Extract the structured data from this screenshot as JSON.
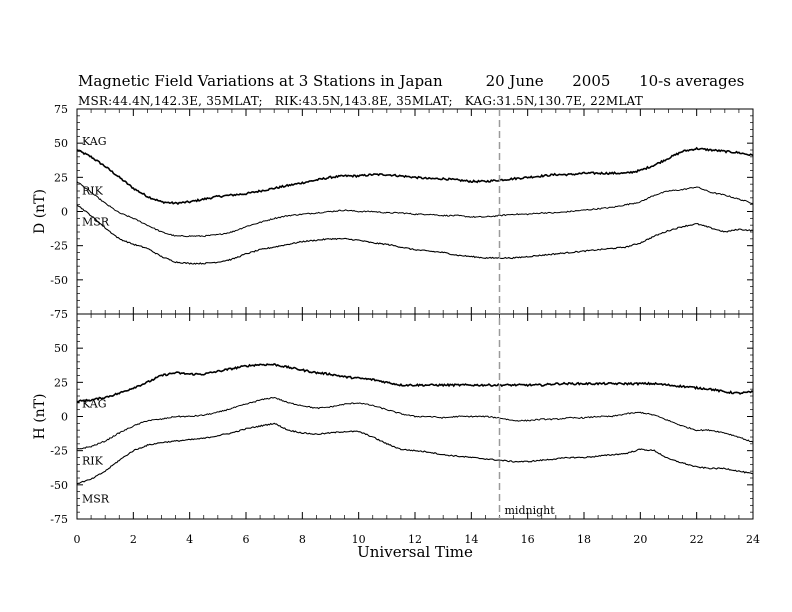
{
  "chart_data": {
    "type": "line",
    "title": "Magnetic Field Variations at 3 Stations in Japan",
    "date": "20 June",
    "year": "2005",
    "averaging": "10-s averages",
    "subtitle": "MSR:44.4N,142.3E, 35MLAT;   RIK:43.5N,143.8E, 35MLAT;   KAG:31.5N,130.7E, 22MLAT",
    "xlabel": "Universal Time",
    "xlim": [
      0,
      24
    ],
    "xticks": [
      "0",
      "2",
      "4",
      "6",
      "8",
      "10",
      "12",
      "14",
      "16",
      "18",
      "20",
      "22",
      "24"
    ],
    "grid": false,
    "annotation": {
      "text": "midnight",
      "x": 15,
      "style": "dashed-vertical-line"
    },
    "panels": [
      {
        "ylabel": "D (nT)",
        "ylim": [
          -75,
          75
        ],
        "yticks": [
          "75",
          "50",
          "25",
          "0",
          "-25",
          "-50",
          "-75"
        ],
        "series": [
          {
            "name": "KAG",
            "x": [
              0,
              0.5,
              1,
              1.5,
              2,
              2.5,
              3,
              3.5,
              4,
              4.5,
              5,
              5.5,
              6,
              6.5,
              7,
              7.5,
              8,
              8.5,
              9,
              9.5,
              10,
              10.5,
              11,
              11.5,
              12,
              12.5,
              13,
              13.5,
              14,
              14.5,
              15,
              15.5,
              16,
              16.5,
              17,
              17.5,
              18,
              18.5,
              19,
              19.5,
              20,
              20.5,
              21,
              21.5,
              22,
              22.5,
              23,
              23.5,
              24
            ],
            "values": [
              45,
              40,
              33,
              25,
              17,
              11,
              7,
              6,
              7,
              9,
              11,
              12,
              13,
              15,
              17,
              19,
              21,
              23,
              25,
              26,
              26,
              27,
              27,
              26,
              25,
              24,
              24,
              23,
              22,
              22,
              23,
              24,
              25,
              26,
              27,
              27,
              28,
              28,
              28,
              28,
              30,
              34,
              39,
              44,
              46,
              45,
              44,
              43,
              41
            ]
          },
          {
            "name": "RIK",
            "x": [
              0,
              0.5,
              1,
              1.5,
              2,
              2.5,
              3,
              3.5,
              4,
              4.5,
              5,
              5.5,
              6,
              6.5,
              7,
              7.5,
              8,
              8.5,
              9,
              9.5,
              10,
              10.5,
              11,
              11.5,
              12,
              12.5,
              13,
              13.5,
              14,
              14.5,
              15,
              15.5,
              16,
              16.5,
              17,
              17.5,
              18,
              18.5,
              19,
              19.5,
              20,
              20.5,
              21,
              21.5,
              22,
              22.5,
              23,
              23.5,
              24
            ],
            "values": [
              22,
              14,
              6,
              -1,
              -5,
              -10,
              -15,
              -18,
              -18,
              -18,
              -17,
              -15,
              -11,
              -8,
              -5,
              -3,
              -2,
              -1,
              0,
              1,
              0,
              0,
              -1,
              -1,
              -2,
              -2,
              -3,
              -3,
              -4,
              -4,
              -3,
              -2,
              -2,
              -1,
              -1,
              0,
              1,
              2,
              3,
              5,
              7,
              12,
              15,
              16,
              18,
              14,
              12,
              9,
              6
            ]
          },
          {
            "name": "MSR",
            "x": [
              0,
              0.5,
              1,
              1.5,
              2,
              2.5,
              3,
              3.5,
              4,
              4.5,
              5,
              5.5,
              6,
              6.5,
              7,
              7.5,
              8,
              8.5,
              9,
              9.5,
              10,
              10.5,
              11,
              11.5,
              12,
              12.5,
              13,
              13.5,
              14,
              14.5,
              15,
              15.5,
              16,
              16.5,
              17,
              17.5,
              18,
              18.5,
              19,
              19.5,
              20,
              20.5,
              21,
              21.5,
              22,
              22.5,
              23,
              23.5,
              24
            ],
            "values": [
              5,
              -3,
              -12,
              -20,
              -24,
              -27,
              -33,
              -37,
              -38,
              -38,
              -37,
              -35,
              -31,
              -28,
              -26,
              -24,
              -22,
              -21,
              -20,
              -20,
              -21,
              -23,
              -24,
              -26,
              -28,
              -29,
              -30,
              -32,
              -33,
              -34,
              -34,
              -34,
              -33,
              -32,
              -31,
              -30,
              -29,
              -28,
              -27,
              -26,
              -23,
              -18,
              -14,
              -11,
              -9,
              -12,
              -15,
              -13,
              -14
            ]
          }
        ]
      },
      {
        "ylabel": "H (nT)",
        "ylim": [
          -75,
          75
        ],
        "yticks": [
          "75",
          "50",
          "25",
          "0",
          "-25",
          "-50",
          "-75"
        ],
        "series": [
          {
            "name": "KAG",
            "x": [
              0,
              0.5,
              1,
              1.5,
              2,
              2.5,
              3,
              3.5,
              4,
              4.5,
              5,
              5.5,
              6,
              6.5,
              7,
              7.5,
              8,
              8.5,
              9,
              9.5,
              10,
              10.5,
              11,
              11.5,
              12,
              12.5,
              13,
              13.5,
              14,
              14.5,
              15,
              15.5,
              16,
              16.5,
              17,
              17.5,
              18,
              18.5,
              19,
              19.5,
              20,
              20.5,
              21,
              21.5,
              22,
              22.5,
              23,
              23.5,
              24
            ],
            "values": [
              11,
              12,
              14,
              17,
              21,
              25,
              30,
              32,
              31,
              31,
              33,
              35,
              37,
              38,
              38,
              36,
              34,
              32,
              31,
              29,
              28,
              27,
              25,
              23,
              23,
              23,
              23,
              23,
              23,
              23,
              23,
              23,
              23,
              23,
              24,
              24,
              24,
              24,
              24,
              24,
              24,
              24,
              23,
              22,
              21,
              20,
              18,
              17,
              18
            ]
          },
          {
            "name": "RIK",
            "x": [
              0,
              0.5,
              1,
              1.5,
              2,
              2.5,
              3,
              3.5,
              4,
              4.5,
              5,
              5.5,
              6,
              6.5,
              7,
              7.5,
              8,
              8.5,
              9,
              9.5,
              10,
              10.5,
              11,
              11.5,
              12,
              12.5,
              13,
              13.5,
              14,
              14.5,
              15,
              15.5,
              16,
              16.5,
              17,
              17.5,
              18,
              18.5,
              19,
              19.5,
              20,
              20.5,
              21,
              21.5,
              22,
              22.5,
              23,
              23.5,
              24
            ],
            "values": [
              -24,
              -22,
              -18,
              -12,
              -7,
              -3,
              -2,
              0,
              0,
              1,
              3,
              6,
              9,
              12,
              14,
              10,
              8,
              6,
              7,
              9,
              10,
              8,
              5,
              2,
              0,
              0,
              -1,
              0,
              0,
              0,
              -1,
              -3,
              -3,
              -2,
              -2,
              -1,
              -1,
              0,
              0,
              2,
              3,
              1,
              -3,
              -7,
              -10,
              -10,
              -12,
              -15,
              -19
            ]
          },
          {
            "name": "MSR",
            "x": [
              0,
              0.5,
              1,
              1.5,
              2,
              2.5,
              3,
              3.5,
              4,
              4.5,
              5,
              5.5,
              6,
              6.5,
              7,
              7.5,
              8,
              8.5,
              9,
              9.5,
              10,
              10.5,
              11,
              11.5,
              12,
              12.5,
              13,
              13.5,
              14,
              14.5,
              15,
              15.5,
              16,
              16.5,
              17,
              17.5,
              18,
              18.5,
              19,
              19.5,
              20,
              20.5,
              21,
              21.5,
              22,
              22.5,
              23,
              23.5,
              24
            ],
            "values": [
              -49,
              -46,
              -40,
              -32,
              -25,
              -21,
              -19,
              -18,
              -17,
              -16,
              -14,
              -12,
              -9,
              -7,
              -5,
              -10,
              -12,
              -13,
              -12,
              -11,
              -11,
              -15,
              -20,
              -24,
              -25,
              -26,
              -28,
              -29,
              -30,
              -31,
              -32,
              -33,
              -33,
              -32,
              -31,
              -30,
              -30,
              -29,
              -28,
              -27,
              -24,
              -25,
              -31,
              -34,
              -37,
              -38,
              -38,
              -40,
              -42
            ]
          }
        ]
      }
    ]
  }
}
